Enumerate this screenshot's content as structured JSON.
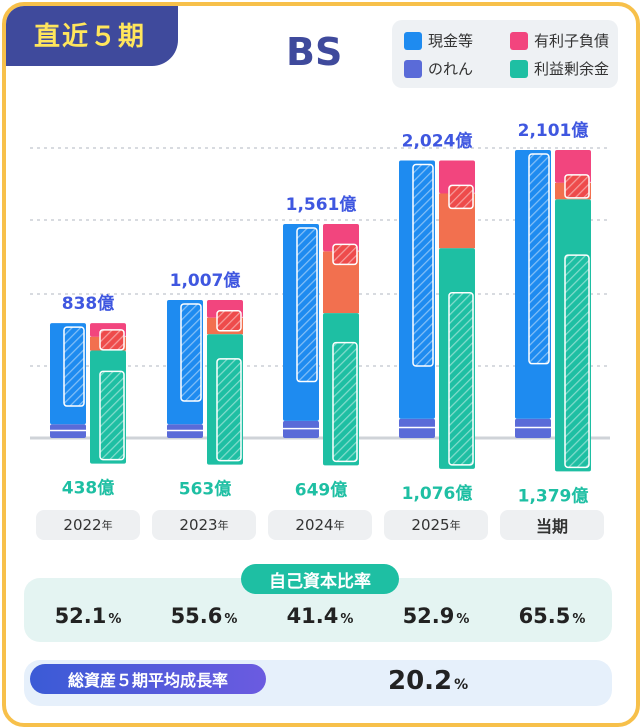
{
  "header": {
    "tag_label": "直近５期",
    "title": "BS"
  },
  "legend": [
    {
      "label": "現金等",
      "color": "#1e8bf0"
    },
    {
      "label": "有利子負債",
      "color": "#f2457e"
    },
    {
      "label": "のれん",
      "color": "#5a6bd8"
    },
    {
      "label": "利益剰余金",
      "color": "#1ebfa3"
    }
  ],
  "colors": {
    "cash": "#1e8bf0",
    "goodwill": "#5a6bd8",
    "debt": "#f2457e",
    "liab": "#f2704f",
    "equity": "#1ebfa3",
    "total_label": "#3f57e0",
    "equity_label": "#1ebfa3"
  },
  "chart_data": {
    "type": "bar",
    "categories": [
      "2022年",
      "2023年",
      "2024年",
      "2025年",
      "当期"
    ],
    "total_assets": [
      838,
      1007,
      1561,
      2024,
      2101
    ],
    "retained_earnings": [
      438,
      563,
      649,
      1076,
      1379
    ],
    "total_labels": [
      "838億",
      "1,007億",
      "1,561億",
      "2,024億",
      "2,101億"
    ],
    "equity_labels": [
      "438億",
      "563億",
      "649億",
      "1,076億",
      "1,379億"
    ],
    "assets_composition": {
      "goodwill": [
        100,
        100,
        125,
        140,
        140
      ],
      "cash": [
        738,
        907,
        1436,
        1884,
        1961
      ]
    },
    "liabilities_composition": {
      "interest_bearing_debt": [
        100,
        130,
        200,
        240,
        240
      ],
      "other_liabilities": [
        100,
        120,
        450,
        400,
        120
      ],
      "equity": [
        638,
        757,
        911,
        1384,
        1741
      ]
    },
    "unit": "億"
  },
  "years": [
    {
      "label": "2022",
      "suffix": "年"
    },
    {
      "label": "2023",
      "suffix": "年"
    },
    {
      "label": "2024",
      "suffix": "年"
    },
    {
      "label": "2025",
      "suffix": "年"
    },
    {
      "label": "当期",
      "suffix": ""
    }
  ],
  "equity_ratio": {
    "label": "自己資本比率",
    "values": [
      "52.1",
      "55.6",
      "41.4",
      "52.9",
      "65.5"
    ],
    "unit": "%"
  },
  "growth": {
    "label": "総資産５期平均成長率",
    "value": "20.2",
    "unit": "%"
  }
}
